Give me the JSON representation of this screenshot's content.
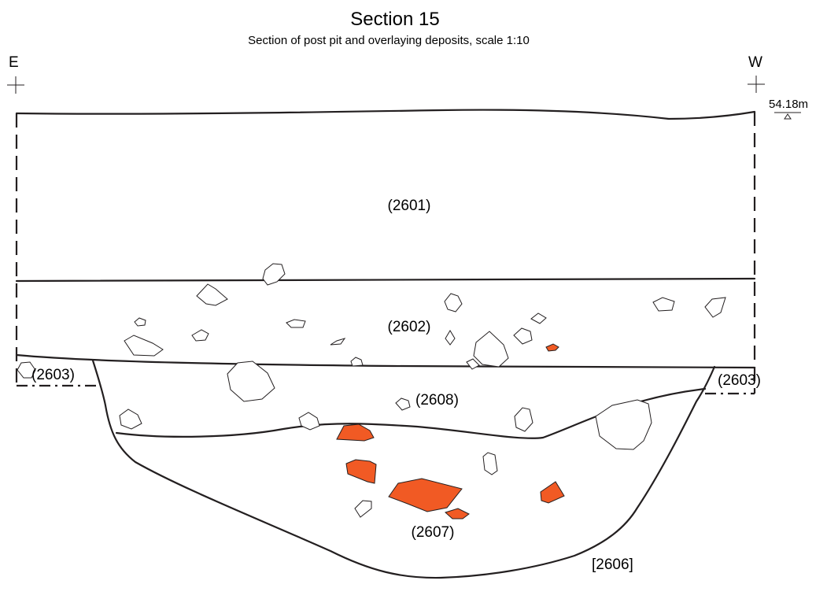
{
  "title": "Section 15",
  "subtitle": "Section of post pit and overlaying deposits, scale 1:10",
  "orientation": {
    "left": "E",
    "right": "W"
  },
  "datum_level": "54.18m",
  "contexts": {
    "c2601": "(2601)",
    "c2602": "(2602)",
    "c2603_left": "(2603)",
    "c2603_right": "(2603)",
    "c2608": "(2608)",
    "c2607": "(2607)",
    "cut2606": "[2606]"
  },
  "colors": {
    "line": "#231f20",
    "burnt_clay": "#f15a24",
    "background": "#ffffff"
  }
}
